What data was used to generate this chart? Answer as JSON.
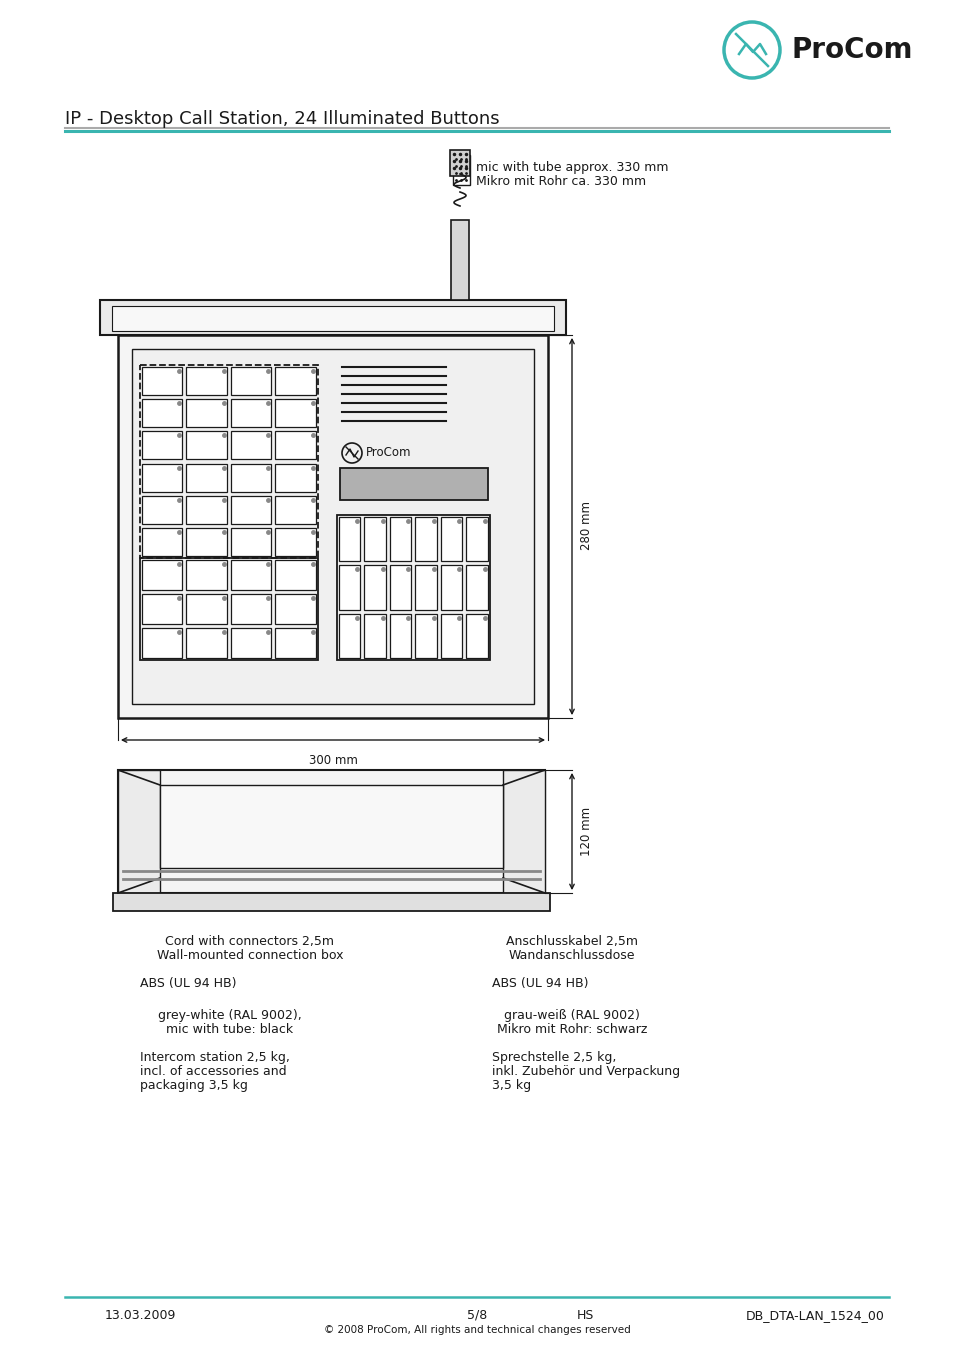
{
  "title": "IP - Desktop Call Station, 24 Illuminated Buttons",
  "teal_color": "#3ab5b0",
  "gray_color": "#aaaaaa",
  "dark_color": "#1a1a1a",
  "light_gray": "#f0f0f0",
  "med_gray": "#888888",
  "btn_gray": "#e8e8e8",
  "lcd_gray": "#b0b0b0",
  "footer_date": "13.03.2009",
  "footer_page": "5/8",
  "footer_hs": "HS",
  "footer_doc": "DB_DTA-LAN_1524_00",
  "footer_copy": "© 2008 ProCom, All rights and technical changes reserved",
  "mic_label1": "mic with tube approx. 330 mm",
  "mic_label2": "Mikro mit Rohr ca. 330 mm",
  "dim_280": "280 mm",
  "dim_300": "300 mm",
  "dim_120": "120 mm",
  "spec_line1_en": "Cord with connectors 2,5m",
  "spec_line2_en": "Wall-mounted connection box",
  "spec_line3_en": "ABS (UL 94 HB)",
  "spec_line4_en": "grey-white (RAL 9002),",
  "spec_line5_en": "mic with tube: black",
  "spec_line6_en": "Intercom station 2,5 kg,",
  "spec_line7_en": "incl. of accessories and",
  "spec_line8_en": "packaging 3,5 kg",
  "spec_line1_de": "Anschlusskabel 2,5m",
  "spec_line2_de": "Wandanschlussdose",
  "spec_line3_de": "ABS (UL 94 HB)",
  "spec_line4_de": "grau-weiß (RAL 9002)",
  "spec_line5_de": "Mikro mit Rohr: schwarz",
  "spec_line6_de": "Sprechstelle 2,5 kg,",
  "spec_line7_de": "inkl. Zubehör und Verpackung",
  "spec_line8_de": "3,5 kg"
}
